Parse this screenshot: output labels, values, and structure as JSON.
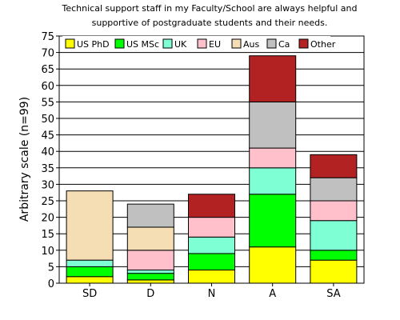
{
  "chart_data": {
    "type": "bar",
    "stacked": true,
    "title": [
      "Technical support staff in my Faculty/School are always helpful and",
      "supportive of postgraduate students and their needs."
    ],
    "xlabel": "",
    "ylabel": "Arbitrary scale (n=99)",
    "ylim": [
      0,
      75
    ],
    "yticks": [
      0,
      5,
      10,
      15,
      20,
      25,
      30,
      35,
      40,
      45,
      50,
      55,
      60,
      65,
      70,
      75
    ],
    "grid": true,
    "legend_position": "top",
    "categories": [
      "SD",
      "D",
      "N",
      "A",
      "SA"
    ],
    "series": [
      {
        "name": "US PhD",
        "color": "#ffff00",
        "values": [
          2,
          1,
          4,
          11,
          7
        ]
      },
      {
        "name": "US MSc",
        "color": "#00ff00",
        "values": [
          3,
          2,
          5,
          16,
          3
        ]
      },
      {
        "name": "UK",
        "color": "#7fffd4",
        "values": [
          2,
          1,
          5,
          8,
          9
        ]
      },
      {
        "name": "EU",
        "color": "#ffc0cb",
        "values": [
          0,
          6,
          6,
          6,
          6
        ]
      },
      {
        "name": "Aus",
        "color": "#f5deb3",
        "values": [
          21,
          7,
          0,
          0,
          0
        ]
      },
      {
        "name": "Ca",
        "color": "#c0c0c0",
        "values": [
          0,
          7,
          0,
          14,
          7
        ]
      },
      {
        "name": "Other",
        "color": "#b22222",
        "values": [
          0,
          0,
          7,
          14,
          7
        ]
      }
    ]
  }
}
